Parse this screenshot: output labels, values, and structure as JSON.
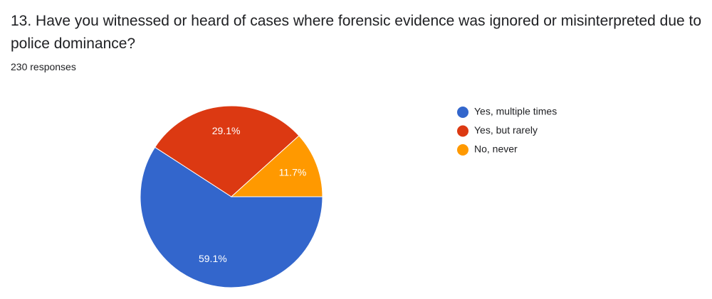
{
  "chart_data": {
    "type": "pie",
    "title": "13. Have you witnessed or heard of cases where forensic evidence was ignored or misinterpreted due to police dominance?",
    "subtitle": "230 responses",
    "categories": [
      "Yes, multiple times",
      "Yes, but rarely",
      "No, never"
    ],
    "values": [
      59.1,
      29.1,
      11.7
    ],
    "value_labels": [
      "59.1%",
      "29.1%",
      "11.7%"
    ],
    "colors": [
      "#3366cc",
      "#dc3912",
      "#ff9900"
    ],
    "legend": "right"
  }
}
